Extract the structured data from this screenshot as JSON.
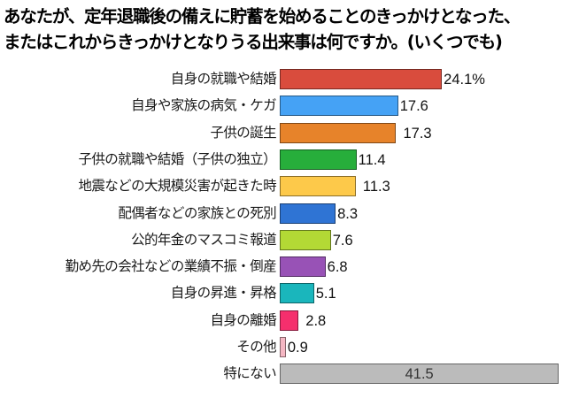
{
  "title": {
    "line1": "あなたが、定年退職後の備えに貯蓄を始めることのきっかけとなった、",
    "line2": "またはこれからきっかけとなりうる出来事は何ですか。(いくつでも)"
  },
  "chart_data": {
    "type": "bar",
    "orientation": "horizontal",
    "title": "あなたが、定年退職後の備えに貯蓄を始めることのきっかけとなった、またはこれからきっかけとなりうる出来事は何ですか。(いくつでも)",
    "xlabel": "",
    "ylabel": "",
    "unit": "%",
    "grid": false,
    "legend": false,
    "categories": [
      "自身の就職や結婚",
      "自身や家族の病気・ケガ",
      "子供の誕生",
      "子供の就職や結婚（子供の独立）",
      "地震などの大規模災害が起きた時",
      "配偶者などの家族との死別",
      "公的年金のマスコミ報道",
      "勤め先の会社などの業績不振・倒産",
      "自身の昇進・昇格",
      "自身の離婚",
      "その他",
      "特にない"
    ],
    "values": [
      24.1,
      17.6,
      17.3,
      11.4,
      11.3,
      8.3,
      7.6,
      6.8,
      5.1,
      2.8,
      0.9,
      41.5
    ],
    "value_labels": [
      "24.1%",
      "17.6",
      "17.3",
      "11.4",
      "11.3",
      "8.3",
      "7.6",
      "6.8",
      "5.1",
      "2.8",
      "0.9",
      "41.5"
    ],
    "colors": [
      "#d94c3d",
      "#45a2f5",
      "#e7832a",
      "#27ae3b",
      "#fdc94a",
      "#2f74d4",
      "#b3d935",
      "#9852b6",
      "#1ab6bc",
      "#f52f6d",
      "#f5b7c3",
      "#bbbbbb"
    ]
  }
}
